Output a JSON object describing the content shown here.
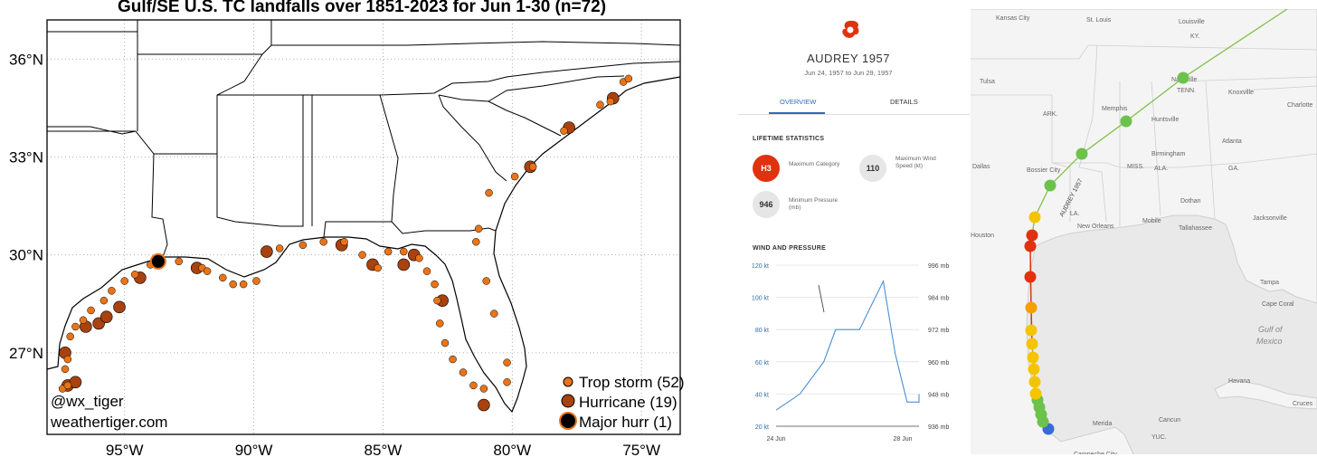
{
  "chart_data": {
    "type": "scatter",
    "title": "Gulf/SE U.S. TC landfalls over 1851-2023 for Jun 1-30 (n=72)",
    "lon_ticks": [
      "95°W",
      "90°W",
      "85°W",
      "80°W",
      "75°W"
    ],
    "lat_ticks": [
      "36°N",
      "33°N",
      "30°N",
      "27°N"
    ],
    "lon_range": [
      -98,
      -73.5
    ],
    "lat_range": [
      24.5,
      37.2
    ],
    "grid": true,
    "legend_placement": "bottom-right",
    "legend": [
      {
        "label": "Trop storm (52)",
        "size": 7,
        "color": "#e8741a"
      },
      {
        "label": "Hurricane (19)",
        "size": 11,
        "color": "#a8420f"
      },
      {
        "label": "Major hurr (1)",
        "size": 14,
        "color": "#000000"
      }
    ],
    "credit": [
      "@wx_tiger",
      "weathertiger.com"
    ],
    "tropical_storms": [
      [
        -97.4,
        25.9
      ],
      [
        -97.2,
        26.0
      ],
      [
        -97.3,
        26.5
      ],
      [
        -97.2,
        26.8
      ],
      [
        -97.1,
        27.5
      ],
      [
        -96.9,
        27.8
      ],
      [
        -96.6,
        28.0
      ],
      [
        -96.3,
        28.3
      ],
      [
        -95.8,
        28.6
      ],
      [
        -95.5,
        28.9
      ],
      [
        -95.0,
        29.2
      ],
      [
        -94.6,
        29.4
      ],
      [
        -94.0,
        29.7
      ],
      [
        -92.9,
        29.8
      ],
      [
        -92.0,
        29.6
      ],
      [
        -91.8,
        29.5
      ],
      [
        -91.2,
        29.3
      ],
      [
        -90.8,
        29.1
      ],
      [
        -90.4,
        29.1
      ],
      [
        -89.9,
        29.2
      ],
      [
        -89.0,
        30.2
      ],
      [
        -88.1,
        30.3
      ],
      [
        -87.3,
        30.4
      ],
      [
        -86.5,
        30.4
      ],
      [
        -85.8,
        30.0
      ],
      [
        -85.2,
        29.6
      ],
      [
        -84.8,
        30.1
      ],
      [
        -84.2,
        30.1
      ],
      [
        -83.6,
        29.9
      ],
      [
        -83.3,
        29.5
      ],
      [
        -83.0,
        29.1
      ],
      [
        -82.9,
        28.6
      ],
      [
        -82.8,
        27.9
      ],
      [
        -82.6,
        27.3
      ],
      [
        -82.3,
        26.8
      ],
      [
        -81.9,
        26.4
      ],
      [
        -81.5,
        26.0
      ],
      [
        -81.1,
        25.9
      ],
      [
        -80.2,
        26.1
      ],
      [
        -80.2,
        26.7
      ],
      [
        -80.7,
        28.2
      ],
      [
        -81.0,
        29.2
      ],
      [
        -81.4,
        30.4
      ],
      [
        -81.3,
        30.8
      ],
      [
        -80.9,
        31.9
      ],
      [
        -79.9,
        32.4
      ],
      [
        -79.2,
        32.7
      ],
      [
        -78.0,
        33.8
      ],
      [
        -76.6,
        34.6
      ],
      [
        -76.2,
        34.7
      ],
      [
        -75.7,
        35.3
      ],
      [
        -75.5,
        35.4
      ]
    ],
    "hurricanes": [
      [
        -97.2,
        26.0
      ],
      [
        -96.9,
        26.1
      ],
      [
        -97.3,
        27.0
      ],
      [
        -96.5,
        27.8
      ],
      [
        -96.0,
        27.9
      ],
      [
        -95.7,
        28.1
      ],
      [
        -95.2,
        28.4
      ],
      [
        -94.4,
        29.3
      ],
      [
        -92.2,
        29.6
      ],
      [
        -89.5,
        30.1
      ],
      [
        -86.6,
        30.3
      ],
      [
        -85.4,
        29.7
      ],
      [
        -84.2,
        29.7
      ],
      [
        -83.8,
        30.0
      ],
      [
        -82.7,
        28.6
      ],
      [
        -81.1,
        25.4
      ],
      [
        -79.3,
        32.7
      ],
      [
        -77.8,
        33.9
      ],
      [
        -76.1,
        34.8
      ]
    ],
    "major_hurricanes": [
      [
        -93.7,
        29.8
      ]
    ]
  },
  "storm_panel": {
    "name": "AUDREY 1957",
    "dates": "Jun 24, 1957 to Jun 29, 1957",
    "tabs": [
      "OVERVIEW",
      "DETAILS"
    ],
    "lifetime_header": "LIFETIME STATISTICS",
    "max_category": "H3",
    "max_category_label": "Maximum Category",
    "max_wind": "110",
    "max_wind_label": "Maximum Wind Speed (kt)",
    "min_pressure": "946",
    "min_pressure_label": "Minimum Pressure (mb)",
    "wp_header": "WIND AND PRESSURE",
    "left_axis": [
      "120 kt",
      "100 kt",
      "80 kt",
      "60 kt",
      "40 kt",
      "20 kt"
    ],
    "right_axis": [
      "996 mb",
      "984 mb",
      "972 mb",
      "960 mb",
      "948 mb",
      "936 mb"
    ],
    "x_labels": [
      "24 Jun",
      "28 Jun"
    ],
    "category_color": "#e0320f",
    "accent": "#2a6db5"
  },
  "wind_chart": {
    "type": "line",
    "x_hours": [
      0,
      12,
      24,
      36,
      48,
      54,
      60,
      66,
      72,
      84,
      96,
      108,
      120,
      132,
      144
    ],
    "wind_kt": [
      30,
      35,
      40,
      50,
      60,
      70,
      80,
      80,
      80,
      80,
      95,
      110,
      65,
      35,
      35
    ],
    "wind_tail_kt": 40,
    "ylim": [
      20,
      120
    ]
  },
  "map": {
    "storm_label": "AUDREY 1957",
    "cities": [
      "Kansas City",
      "St. Louis",
      "Louisville",
      "KY.",
      "Tulsa",
      "Nashville",
      "TENN.",
      "Knoxville",
      "Charlotte",
      "ARK.",
      "Memphis",
      "Huntsville",
      "Atlanta",
      "Dallas",
      "Bossier City",
      "MISS.",
      "Birmingham",
      "ALA.",
      "GA.",
      "LA.",
      "New Orleans",
      "Houston",
      "Mobile",
      "Tallahassee",
      "Dothan",
      "Jacksonville",
      "Tampa",
      "Cape Coral",
      "Gulf of",
      "Mexico",
      "Havana",
      "Cruces",
      "Merida",
      "Cancun",
      "YUC.",
      "Campeche City"
    ],
    "track_colors": {
      "ts": "#6cc24a",
      "h1": "#f5c400",
      "h2": "#f5a000",
      "h3": "#e0320f",
      "td": "#3a6bd4"
    }
  }
}
